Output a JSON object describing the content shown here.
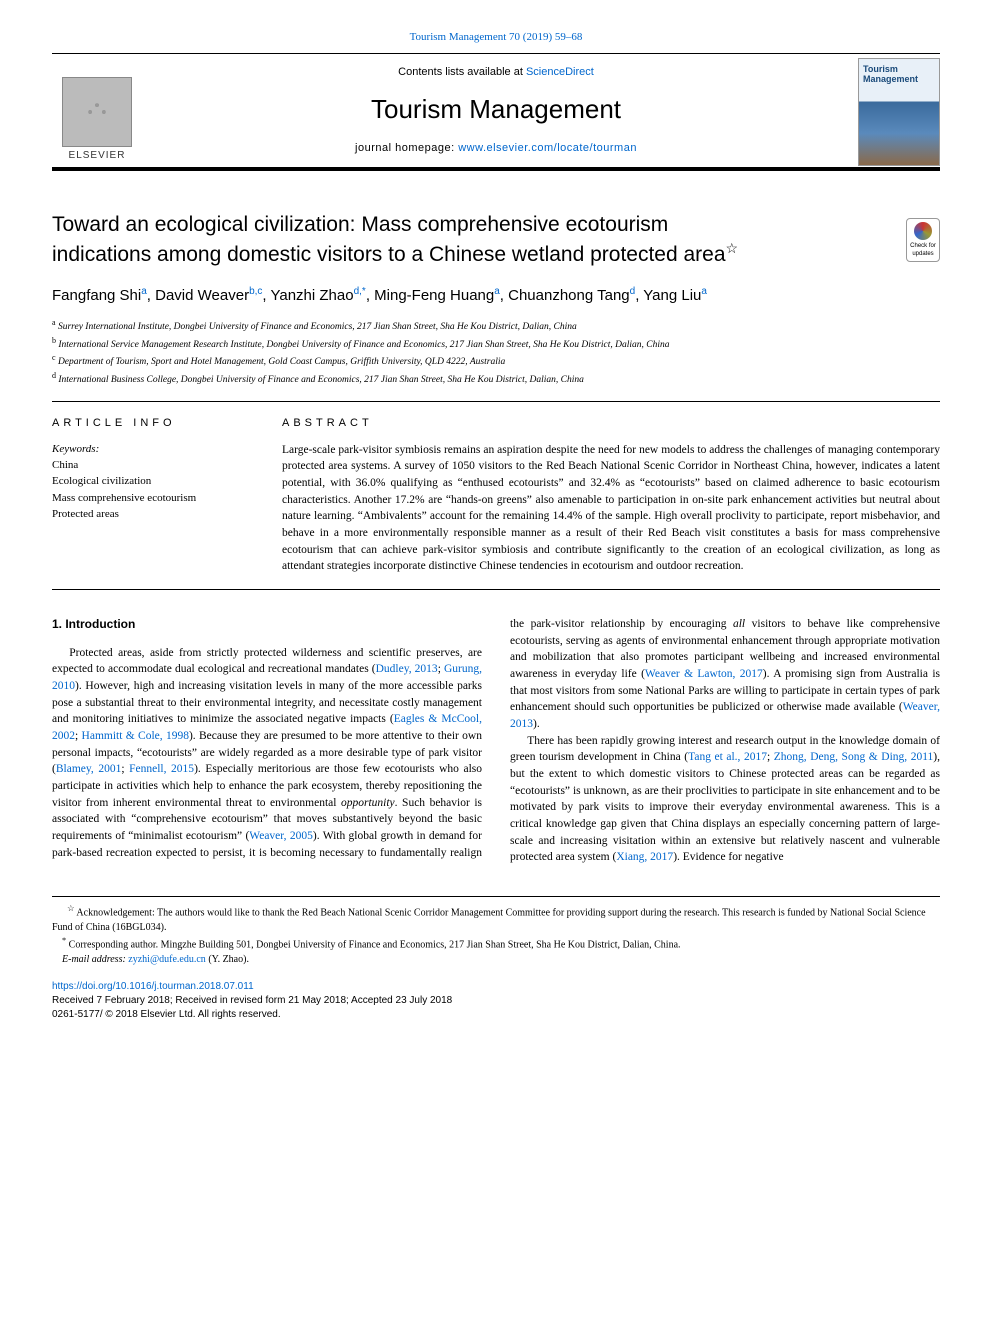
{
  "top_citation_link": "Tourism Management 70 (2019) 59–68",
  "masthead": {
    "contents_prefix": "Contents lists available at ",
    "contents_link": "ScienceDirect",
    "journal_name": "Tourism Management",
    "homepage_prefix": "journal homepage: ",
    "homepage_link": "www.elsevier.com/locate/tourman",
    "elsevier_label": "ELSEVIER",
    "cover_title": "Tourism Management"
  },
  "check_badge": {
    "line1": "Check for",
    "line2": "updates"
  },
  "title_line1": "Toward an ecological civilization: Mass comprehensive ecotourism",
  "title_line2": "indications among domestic visitors to a Chinese wetland protected area",
  "title_star": "☆",
  "authors_html_parts": {
    "a1": "Fangfang Shi",
    "s1": "a",
    "a2": ", David Weaver",
    "s2": "b,c",
    "a3": ", Yanzhi Zhao",
    "s3": "d,",
    "s3b": "*",
    "a4": ", Ming-Feng Huang",
    "s4": "a",
    "a5": ", Chuanzhong Tang",
    "s5": "d",
    "a6": ", Yang Liu",
    "s6": "a"
  },
  "affiliations": {
    "a": "Surrey International Institute, Dongbei University of Finance and Economics, 217 Jian Shan Street, Sha He Kou District, Dalian, China",
    "b": "International Service Management Research Institute, Dongbei University of Finance and Economics, 217 Jian Shan Street, Sha He Kou District, Dalian, China",
    "c": "Department of Tourism, Sport and Hotel Management, Gold Coast Campus, Griffith University, QLD 4222, Australia",
    "d": "International Business College, Dongbei University of Finance and Economics, 217 Jian Shan Street, Sha He Kou District, Dalian, China"
  },
  "article_info": {
    "heading": "ARTICLE INFO",
    "keywords_label": "Keywords:",
    "keywords": [
      "China",
      "Ecological civilization",
      "Mass comprehensive ecotourism",
      "Protected areas"
    ]
  },
  "abstract": {
    "heading": "ABSTRACT",
    "text": "Large-scale park-visitor symbiosis remains an aspiration despite the need for new models to address the challenges of managing contemporary protected area systems. A survey of 1050 visitors to the Red Beach National Scenic Corridor in Northeast China, however, indicates a latent potential, with 36.0% qualifying as “enthused ecotourists” and 32.4% as “ecotourists” based on claimed adherence to basic ecotourism characteristics. Another 17.2% are “hands-on greens” also amenable to participation in on-site park enhancement activities but neutral about nature learning. “Ambivalents” account for the remaining 14.4% of the sample. High overall proclivity to participate, report misbehavior, and behave in a more environmentally responsible manner as a result of their Red Beach visit constitutes a basis for mass comprehensive ecotourism that can achieve park-visitor symbiosis and contribute significantly to the creation of an ecological civilization, as long as attendant strategies incorporate distinctive Chinese tendencies in ecotourism and outdoor recreation."
  },
  "section1": {
    "heading": "1. Introduction",
    "p1a": "Protected areas, aside from strictly protected wilderness and scientific preserves, are expected to accommodate dual ecological and recreational mandates (",
    "p1l1": "Dudley, 2013",
    "p1b": "; ",
    "p1l2": "Gurung, 2010",
    "p1c": "). However, high and increasing visitation levels in many of the more accessible parks pose a substantial threat to their environmental integrity, and necessitate costly management and monitoring initiatives to minimize the associated negative impacts (",
    "p1l3": "Eagles & McCool, 2002",
    "p1d": "; ",
    "p1l4": "Hammitt & Cole, 1998",
    "p1e": "). Because they are presumed to be more attentive to their own personal impacts, “ecotourists” are widely regarded as a more desirable type of park visitor (",
    "p1l5": "Blamey, 2001",
    "p1f": "; ",
    "p1l6": "Fennell, 2015",
    "p1g": "). Especially meritorious are those few ecotourists who also participate in activities which help to enhance the park ecosystem, thereby repositioning the visitor from inherent environmental threat to environmental ",
    "p1em": "opportunity",
    "p1h": ". Such behavior is associated with “comprehensive ecotourism” that moves substantively beyond the basic requirements of “minimalist ecotourism” (",
    "p1l7": "Weaver, 2005",
    "p1i": "). With global growth in demand for park-based recreation expected to persist, it is becoming necessary to fundamentally realign the park-visitor relationship by encouraging ",
    "p1em2": "all",
    "p1j": " visitors to behave like comprehensive ecotourists, serving as agents of environmental enhancement through appropriate motivation and mobilization that also promotes participant wellbeing and increased environmental awareness in everyday life (",
    "p1l8": "Weaver & Lawton, 2017",
    "p1k": "). A promising sign from Australia is that most visitors from some National Parks are willing to participate in certain types of park enhancement should such opportunities be publicized or otherwise made available (",
    "p1l9": "Weaver, 2013",
    "p1m": ").",
    "p2a": "There has been rapidly growing interest and research output in the knowledge domain of green tourism development in China (",
    "p2l1": "Tang et al., 2017",
    "p2b": "; ",
    "p2l2": "Zhong, Deng, Song & Ding, 2011",
    "p2c": "), but the extent to which domestic visitors to Chinese protected areas can be regarded as “ecotourists” is unknown, as are their proclivities to participate in site enhancement and to be motivated by park visits to improve their everyday environmental awareness. This is a critical knowledge gap given that China displays an especially concerning pattern of large-scale and increasing visitation within an extensive but relatively nascent and vulnerable protected area system (",
    "p2l3": "Xiang, 2017",
    "p2d": "). Evidence for negative"
  },
  "footnotes": {
    "ack": "Acknowledgement: The authors would like to thank the Red Beach National Scenic Corridor Management Committee for providing support during the research. This research is funded by National Social Science Fund of China (16BGL034).",
    "corr": "Corresponding author. Mingzhe Building 501, Dongbei University of Finance and Economics, 217 Jian Shan Street, Sha He Kou District, Dalian, China.",
    "email_label": "E-mail address: ",
    "email": "zyzhi@dufe.edu.cn",
    "email_suffix": " (Y. Zhao)."
  },
  "doi": {
    "link": "https://doi.org/10.1016/j.tourman.2018.07.011",
    "dates": "Received 7 February 2018; Received in revised form 21 May 2018; Accepted 23 July 2018",
    "copyright": "0261-5177/ © 2018 Elsevier Ltd. All rights reserved."
  },
  "colors": {
    "link": "#0066cc",
    "rule": "#000000",
    "text": "#000000"
  }
}
